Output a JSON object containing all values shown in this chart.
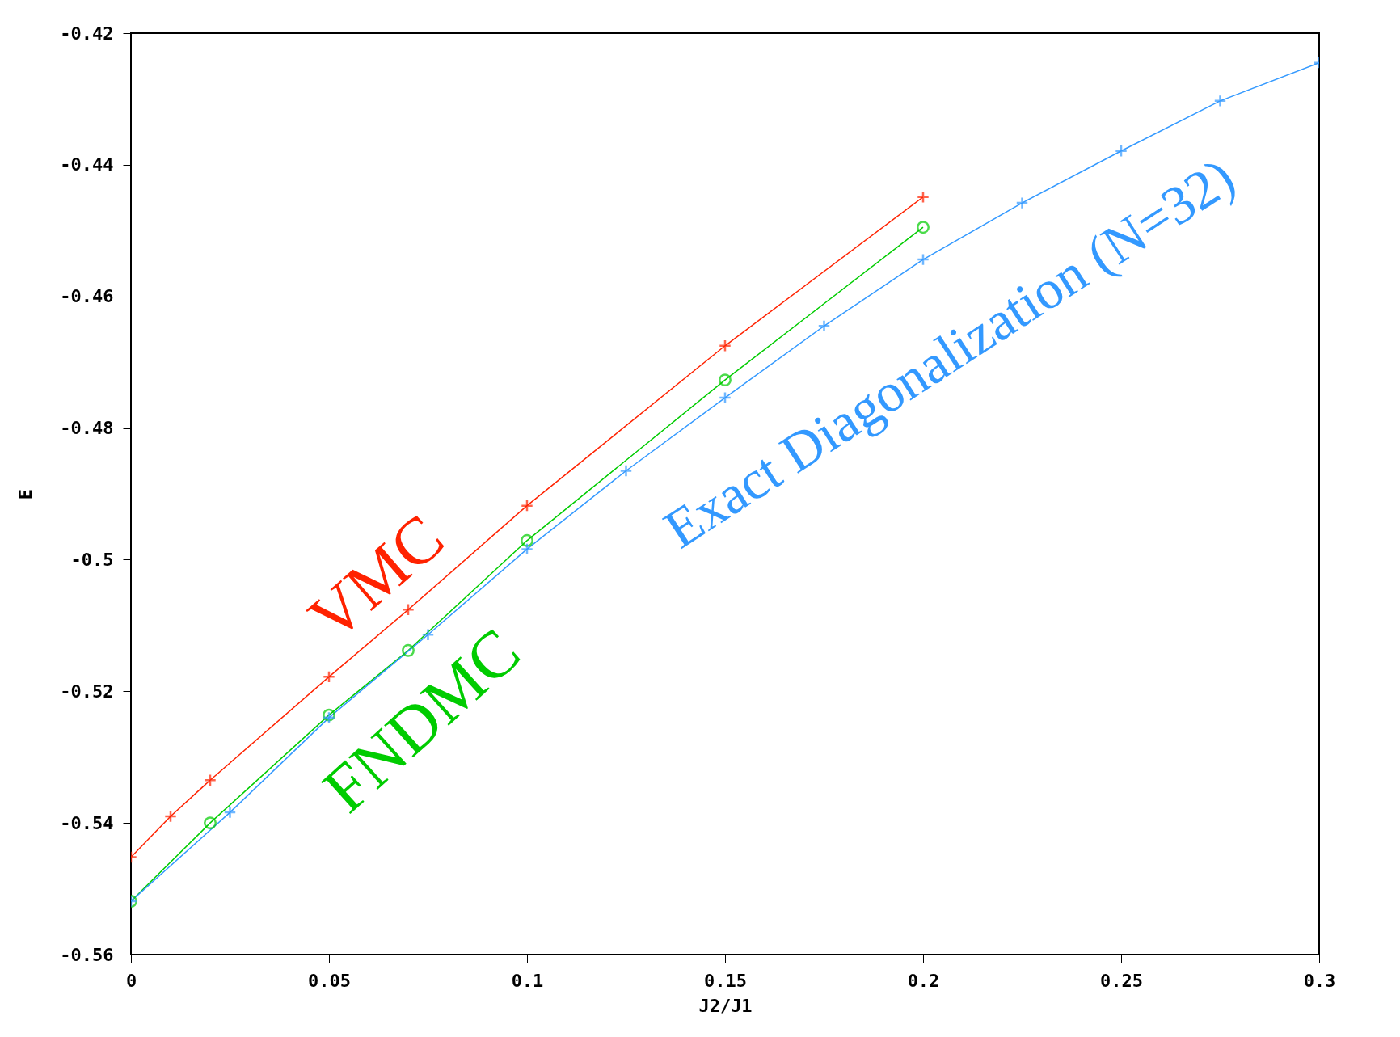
{
  "chart_data": {
    "type": "line",
    "xlabel": "J2/J1",
    "ylabel": "E",
    "xlim": [
      0,
      0.3
    ],
    "xticks": [
      0,
      0.05,
      0.1,
      0.15,
      0.2,
      0.25,
      0.3
    ],
    "ylim": [
      -0.56,
      -0.42
    ],
    "yticks": [
      -0.56,
      -0.54,
      -0.52,
      -0.5,
      -0.48,
      -0.46,
      -0.44,
      -0.42
    ],
    "grid": false,
    "legend": false,
    "series": [
      {
        "name": "VMC",
        "color": "#ff2200",
        "marker": "cross",
        "x": [
          0,
          0.01,
          0.02,
          0.05,
          0.07,
          0.1,
          0.15,
          0.2
        ],
        "values": [
          -0.5452,
          -0.539,
          -0.5335,
          -0.5178,
          -0.5076,
          -0.4918,
          -0.4675,
          -0.4449
        ]
      },
      {
        "name": "FNDMC",
        "color": "#00cc00",
        "marker": "circle",
        "x": [
          0,
          0.02,
          0.05,
          0.07,
          0.1,
          0.15,
          0.2
        ],
        "values": [
          -0.5519,
          -0.54,
          -0.5236,
          -0.5138,
          -0.4971,
          -0.4727,
          -0.4495
        ]
      },
      {
        "name": "Exact Diagonalization (N=32)",
        "color": "#3399ff",
        "marker": "cross",
        "x": [
          0,
          0.025,
          0.05,
          0.075,
          0.1,
          0.125,
          0.15,
          0.175,
          0.2,
          0.225,
          0.25,
          0.275,
          0.3
        ],
        "values": [
          -0.5519,
          -0.5384,
          -0.524,
          -0.5114,
          -0.4984,
          -0.4865,
          -0.4754,
          -0.4645,
          -0.4544,
          -0.4458,
          -0.4379,
          -0.4303,
          -0.4245
        ]
      }
    ]
  }
}
